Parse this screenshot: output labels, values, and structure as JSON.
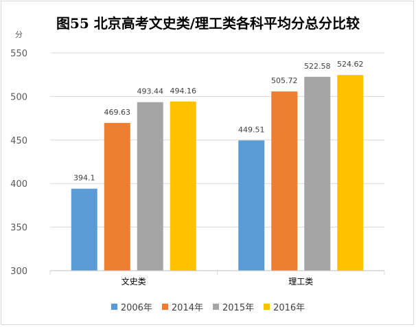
{
  "chart_data": {
    "type": "bar",
    "title": "图55  北京高考文史类/理工类各科平均分总分比较",
    "ylabel": "分",
    "xlabel": "",
    "ylim": [
      300,
      550
    ],
    "yticks": [
      300,
      350,
      400,
      450,
      500,
      550
    ],
    "categories": [
      "文史类",
      "理工类"
    ],
    "series": [
      {
        "name": "2006年",
        "color": "#5b9bd5",
        "values": [
          394.1,
          449.51
        ],
        "labels": [
          "394.1",
          "449.51"
        ]
      },
      {
        "name": "2014年",
        "color": "#ed7d31",
        "values": [
          469.63,
          505.72
        ],
        "labels": [
          "469.63",
          "505.72"
        ]
      },
      {
        "name": "2015年",
        "color": "#a5a5a5",
        "values": [
          493.44,
          522.58
        ],
        "labels": [
          "493.44",
          "522.58"
        ]
      },
      {
        "name": "2016年",
        "color": "#ffc000",
        "values": [
          494.16,
          524.62
        ],
        "labels": [
          "494.16",
          "524.62"
        ]
      }
    ],
    "grid": true,
    "legend_position": "bottom"
  }
}
